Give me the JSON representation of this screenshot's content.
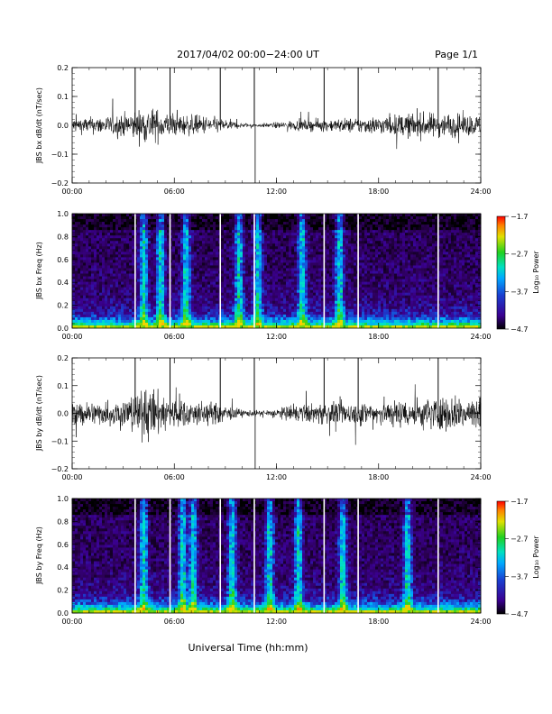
{
  "header": {
    "title": "2017/04/02  00:00−24:00 UT",
    "page_label": "Page 1/1"
  },
  "xlabel": "Universal Time (hh:mm)",
  "colors": {
    "trace": "#000000",
    "background": "#ffffff",
    "spectrogram_palette": [
      "#000000",
      "#2a0050",
      "#3a0090",
      "#1a3fd0",
      "#00a8ff",
      "#00e8c0",
      "#20d020",
      "#c8e000",
      "#ffd000",
      "#ff7000",
      "#ff0000"
    ]
  },
  "colorbar": {
    "label": "Log₁₀ Power",
    "ticks": [
      "−1.7",
      "−2.7",
      "−3.7",
      "−4.7"
    ],
    "range": [
      -4.7,
      -1.7
    ]
  },
  "chart_data": [
    {
      "type": "line",
      "panel": "bx-derivative",
      "ylabel": "JBS bx dB/dt (nT/sec)",
      "x_ticks": [
        "00:00",
        "06:00",
        "12:00",
        "18:00",
        "24:00"
      ],
      "xlim": [
        0,
        24
      ],
      "ylim": [
        -0.2,
        0.2
      ],
      "y_ticks": [
        "0.2",
        "0.1",
        "0.0",
        "−0.1",
        "−0.2"
      ],
      "noise_envelope": {
        "x": [
          0,
          2,
          3.5,
          4.5,
          6,
          8,
          9,
          10,
          11,
          12,
          13,
          15,
          18,
          20,
          22,
          24
        ],
        "amp": [
          0.012,
          0.015,
          0.022,
          0.03,
          0.018,
          0.015,
          0.01,
          0.004,
          0.003,
          0.005,
          0.008,
          0.01,
          0.015,
          0.02,
          0.02,
          0.016
        ]
      },
      "spikes": [
        {
          "t": 3.7,
          "value": 0.2
        },
        {
          "t": 5.75,
          "value": 0.2
        },
        {
          "t": 8.7,
          "value": 0.2
        },
        {
          "t": 10.7,
          "value": 0.2
        },
        {
          "t": 10.75,
          "value": -0.2
        },
        {
          "t": 14.8,
          "value": 0.2
        },
        {
          "t": 16.8,
          "value": 0.2
        },
        {
          "t": 21.5,
          "value": 0.2
        }
      ]
    },
    {
      "type": "heatmap",
      "panel": "bx-spectrogram",
      "ylabel": "JBS bx Freq (Hz)",
      "x_ticks": [
        "00:00",
        "06:00",
        "12:00",
        "18:00",
        "24:00"
      ],
      "xlim": [
        0,
        24
      ],
      "ylim": [
        0.0,
        1.0
      ],
      "y_ticks": [
        "1.0",
        "0.8",
        "0.6",
        "0.4",
        "0.2",
        "0.0"
      ],
      "gaps_hours": [
        3.7,
        5.75,
        8.7,
        10.7,
        14.8,
        16.8,
        21.5
      ],
      "bright_streaks_hours": [
        4.2,
        5.2,
        6.7,
        9.8,
        10.9,
        13.5,
        15.7
      ]
    },
    {
      "type": "line",
      "panel": "by-derivative",
      "ylabel": "JBS by dB/dt (nT/sec)",
      "x_ticks": [
        "00:00",
        "06:00",
        "12:00",
        "18:00",
        "24:00"
      ],
      "xlim": [
        0,
        24
      ],
      "ylim": [
        -0.2,
        0.2
      ],
      "y_ticks": [
        "0.2",
        "0.1",
        "0.0",
        "−0.1",
        "−0.2"
      ],
      "noise_envelope": {
        "x": [
          0,
          2,
          3.5,
          4.5,
          6,
          8,
          9,
          10,
          11,
          12,
          13,
          15,
          18,
          20,
          22,
          24
        ],
        "amp": [
          0.02,
          0.02,
          0.03,
          0.045,
          0.025,
          0.02,
          0.014,
          0.006,
          0.005,
          0.008,
          0.014,
          0.018,
          0.022,
          0.025,
          0.03,
          0.03
        ]
      },
      "spikes": [
        {
          "t": 3.7,
          "value": 0.2
        },
        {
          "t": 5.75,
          "value": 0.2
        },
        {
          "t": 8.7,
          "value": 0.2
        },
        {
          "t": 10.7,
          "value": 0.2
        },
        {
          "t": 10.75,
          "value": -0.2
        },
        {
          "t": 14.8,
          "value": 0.2
        },
        {
          "t": 16.8,
          "value": 0.2
        },
        {
          "t": 21.5,
          "value": 0.2
        }
      ]
    },
    {
      "type": "heatmap",
      "panel": "by-spectrogram",
      "ylabel": "JBS by Freq (Hz)",
      "x_ticks": [
        "00:00",
        "06:00",
        "12:00",
        "18:00",
        "24:00"
      ],
      "xlim": [
        0,
        24
      ],
      "ylim": [
        0.0,
        1.0
      ],
      "y_ticks": [
        "1.0",
        "0.8",
        "0.6",
        "0.4",
        "0.2",
        "0.0"
      ],
      "gaps_hours": [
        3.7,
        5.75,
        8.7,
        10.7,
        14.8,
        16.8,
        21.5
      ],
      "bright_streaks_hours": [
        4.2,
        6.5,
        7.1,
        9.4,
        11.6,
        13.3,
        15.9,
        19.7
      ]
    }
  ]
}
